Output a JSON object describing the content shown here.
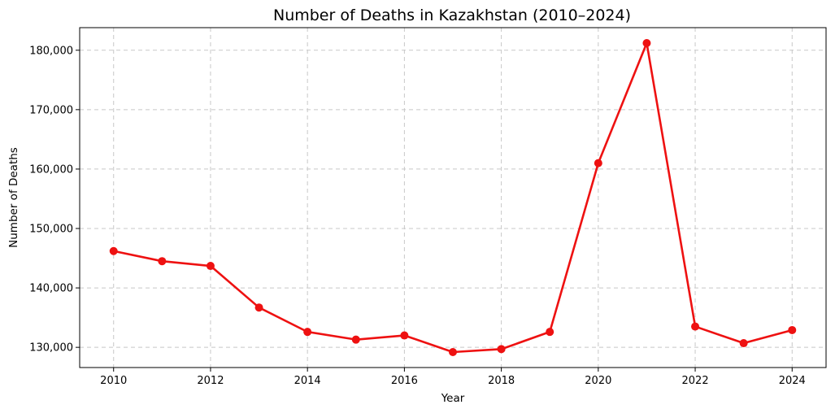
{
  "chart_data": {
    "type": "line",
    "title": "Number of Deaths in Kazakhstan (2010–2024)",
    "xlabel": "Year",
    "ylabel": "Number of Deaths",
    "x": [
      2010,
      2011,
      2012,
      2013,
      2014,
      2015,
      2016,
      2017,
      2018,
      2019,
      2020,
      2021,
      2022,
      2023,
      2024
    ],
    "series": [
      {
        "values": [
          146200,
          144500,
          143700,
          136700,
          132600,
          131300,
          132000,
          129200,
          129700,
          132600,
          161000,
          181200,
          133500,
          130700,
          132900
        ]
      }
    ],
    "xticks": [
      2010,
      2012,
      2014,
      2016,
      2018,
      2020,
      2022,
      2024
    ],
    "xtick_labels": [
      "2010",
      "2012",
      "2014",
      "2016",
      "2018",
      "2020",
      "2022",
      "2024"
    ],
    "yticks": [
      130000,
      140000,
      150000,
      160000,
      170000,
      180000
    ],
    "ytick_labels": [
      "130,000",
      "140,000",
      "150,000",
      "160,000",
      "170,000",
      "180,000"
    ],
    "xlim": [
      2009.3,
      2024.7
    ],
    "ylim": [
      126600,
      183800
    ],
    "grid": true,
    "line_color": "#ee1111",
    "marker": "circle"
  }
}
